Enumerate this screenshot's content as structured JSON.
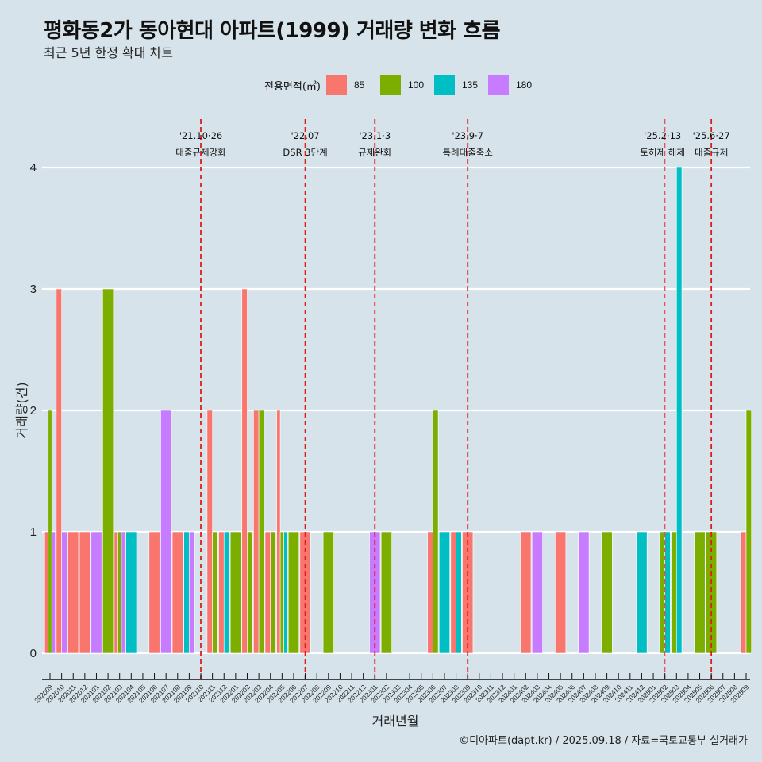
{
  "header": {
    "title": "평화동2가 동아현대 아파트(1999) 거래량 변화 흐름",
    "subtitle": "최근 5년 한정 확대 차트"
  },
  "legend": {
    "title": "전용면적(㎡)",
    "items": [
      {
        "label": "85",
        "color": "#F8766D"
      },
      {
        "label": "100",
        "color": "#7CAE00"
      },
      {
        "label": "135",
        "color": "#00BFC4"
      },
      {
        "label": "180",
        "color": "#C77CFF"
      }
    ]
  },
  "caption": "©디아파트(dapt.kr) / 2025.09.18 / 자료=국토교통부 실거래가",
  "chart_data": {
    "type": "bar",
    "bar_mode": "dodge",
    "title": "평화동2가 동아현대 아파트(1999) 거래량 변화 흐름",
    "subtitle": "최근 5년 한정 확대 차트",
    "xlabel": "거래년월",
    "ylabel": "거래량(건)",
    "ylim": [
      0,
      4
    ],
    "yticks": [
      0,
      1,
      2,
      3,
      4
    ],
    "grid": true,
    "legend_position": "top",
    "categories": [
      "202009",
      "202010",
      "202011",
      "202012",
      "202101",
      "202102",
      "202103",
      "202104",
      "202105",
      "202106",
      "202107",
      "202108",
      "202109",
      "202110",
      "202111",
      "202112",
      "202201",
      "202202",
      "202203",
      "202204",
      "202205",
      "202206",
      "202207",
      "202208",
      "202209",
      "202210",
      "202211",
      "202212",
      "202301",
      "202302",
      "202303",
      "202304",
      "202305",
      "202306",
      "202307",
      "202308",
      "202309",
      "202310",
      "202311",
      "202312",
      "202401",
      "202402",
      "202403",
      "202404",
      "202405",
      "202406",
      "202407",
      "202408",
      "202409",
      "202410",
      "202411",
      "202412",
      "202501",
      "202502",
      "202503",
      "202504",
      "202505",
      "202506",
      "202507",
      "202508",
      "202509"
    ],
    "series": [
      {
        "name": "85",
        "color": "#F8766D",
        "values": [
          1,
          3,
          1,
          1,
          0,
          0,
          1,
          0,
          0,
          1,
          0,
          1,
          0,
          0,
          2,
          1,
          0,
          3,
          2,
          1,
          2,
          0,
          1,
          0,
          0,
          0,
          0,
          0,
          0,
          0,
          0,
          0,
          0,
          1,
          0,
          1,
          1,
          0,
          0,
          0,
          0,
          1,
          0,
          0,
          1,
          0,
          0,
          0,
          0,
          0,
          0,
          0,
          0,
          0,
          0,
          0,
          0,
          0,
          0,
          0,
          1
        ]
      },
      {
        "name": "100",
        "color": "#7CAE00",
        "values": [
          2,
          0,
          0,
          0,
          0,
          3,
          1,
          0,
          0,
          0,
          0,
          0,
          0,
          0,
          1,
          0,
          1,
          1,
          2,
          1,
          1,
          1,
          0,
          0,
          1,
          0,
          0,
          0,
          0,
          1,
          0,
          0,
          0,
          2,
          0,
          0,
          0,
          0,
          0,
          0,
          0,
          0,
          0,
          0,
          0,
          0,
          0,
          0,
          1,
          0,
          0,
          0,
          0,
          1,
          1,
          0,
          1,
          1,
          0,
          0,
          2
        ]
      },
      {
        "name": "135",
        "color": "#00BFC4",
        "values": [
          0,
          0,
          0,
          0,
          0,
          0,
          0,
          1,
          0,
          0,
          0,
          0,
          1,
          0,
          0,
          1,
          0,
          0,
          0,
          0,
          1,
          0,
          0,
          0,
          0,
          0,
          0,
          0,
          0,
          0,
          0,
          0,
          0,
          0,
          1,
          1,
          0,
          0,
          0,
          0,
          0,
          0,
          0,
          0,
          0,
          0,
          0,
          0,
          0,
          0,
          0,
          1,
          0,
          1,
          4,
          0,
          0,
          0,
          0,
          0,
          0
        ]
      },
      {
        "name": "180",
        "color": "#C77CFF",
        "values": [
          1,
          1,
          0,
          0,
          1,
          0,
          1,
          0,
          0,
          0,
          2,
          0,
          1,
          0,
          0,
          0,
          0,
          0,
          0,
          0,
          0,
          0,
          0,
          0,
          0,
          0,
          0,
          0,
          1,
          0,
          0,
          0,
          0,
          0,
          0,
          0,
          0,
          0,
          0,
          0,
          0,
          0,
          1,
          0,
          0,
          0,
          1,
          0,
          0,
          0,
          0,
          0,
          0,
          0,
          0,
          0,
          0,
          0,
          0,
          0,
          0
        ]
      }
    ],
    "events": [
      {
        "month": "202110",
        "date": "'21.10·26",
        "label": "대출규제강화",
        "style": "bold"
      },
      {
        "month": "202207",
        "date": "'22.07",
        "label": "DSR 3단계",
        "style": "bold"
      },
      {
        "month": "202301",
        "date": "'23.1·3",
        "label": "규제완화",
        "style": "bold"
      },
      {
        "month": "202309",
        "date": "'23.9·7",
        "label": "특례대출축소",
        "style": "bold"
      },
      {
        "month": "202502",
        "date": "'25.2·13",
        "label": "토허제 해제",
        "style": "light"
      },
      {
        "month": "202506",
        "date": "'25.6·27",
        "label": "대출규제",
        "style": "bold"
      }
    ]
  }
}
